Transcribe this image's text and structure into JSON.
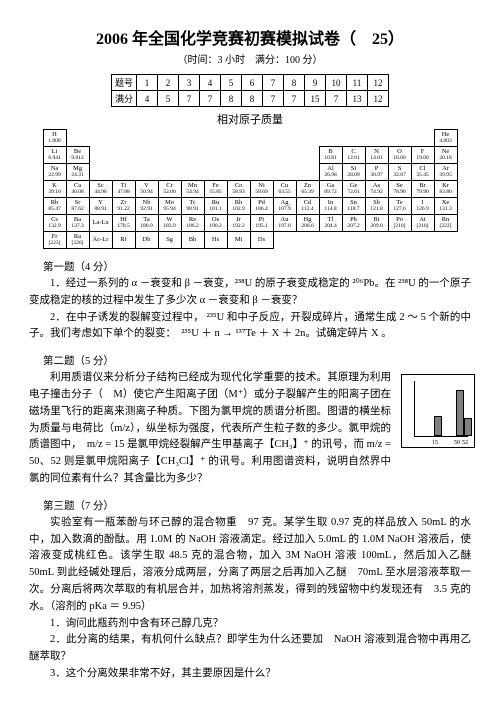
{
  "title": "2006 年全国化学竞赛初赛模拟试卷（　25）",
  "subtitle": "（时间：3 小时　满分：100 分）",
  "scoreTable": {
    "row1": [
      "题号",
      "1",
      "2",
      "3",
      "4",
      "5",
      "6",
      "7",
      "8",
      "9",
      "10",
      "11",
      "12"
    ],
    "row2": [
      "满分",
      "4",
      "5",
      "7",
      "7",
      "8",
      "8",
      "7",
      "7",
      "15",
      "7",
      "13",
      "12"
    ]
  },
  "periodicLabel": "相对原子质量",
  "periodic": {
    "r1": [
      {
        "s": "H",
        "m": "1.008"
      },
      null,
      null,
      null,
      null,
      null,
      null,
      null,
      null,
      null,
      null,
      null,
      null,
      null,
      null,
      null,
      null,
      {
        "s": "He",
        "m": "4.003"
      }
    ],
    "r2": [
      {
        "s": "Li",
        "m": "6.941"
      },
      {
        "s": "Be",
        "m": "9.012"
      },
      null,
      null,
      null,
      null,
      null,
      null,
      null,
      null,
      null,
      null,
      {
        "s": "B",
        "m": "10.81"
      },
      {
        "s": "C",
        "m": "12.01"
      },
      {
        "s": "N",
        "m": "14.01"
      },
      {
        "s": "O",
        "m": "16.00"
      },
      {
        "s": "F",
        "m": "19.00"
      },
      {
        "s": "Ne",
        "m": "20.18"
      }
    ],
    "r3": [
      {
        "s": "Na",
        "m": "22.99"
      },
      {
        "s": "Mg",
        "m": "24.31"
      },
      null,
      null,
      null,
      null,
      null,
      null,
      null,
      null,
      null,
      null,
      {
        "s": "Al",
        "m": "26.98"
      },
      {
        "s": "Si",
        "m": "28.09"
      },
      {
        "s": "P",
        "m": "30.97"
      },
      {
        "s": "S",
        "m": "32.07"
      },
      {
        "s": "Cl",
        "m": "35.45"
      },
      {
        "s": "Ar",
        "m": "39.95"
      }
    ],
    "r4": [
      {
        "s": "K",
        "m": "39.10"
      },
      {
        "s": "Ca",
        "m": "40.08"
      },
      {
        "s": "Sc",
        "m": "44.96"
      },
      {
        "s": "Ti",
        "m": "47.88"
      },
      {
        "s": "V",
        "m": "50.94"
      },
      {
        "s": "Cr",
        "m": "52.00"
      },
      {
        "s": "Mn",
        "m": "54.94"
      },
      {
        "s": "Fe",
        "m": "55.85"
      },
      {
        "s": "Co",
        "m": "58.93"
      },
      {
        "s": "Ni",
        "m": "58.69"
      },
      {
        "s": "Cu",
        "m": "63.55"
      },
      {
        "s": "Zn",
        "m": "65.39"
      },
      {
        "s": "Ga",
        "m": "69.72"
      },
      {
        "s": "Ge",
        "m": "72.61"
      },
      {
        "s": "As",
        "m": "74.92"
      },
      {
        "s": "Se",
        "m": "78.96"
      },
      {
        "s": "Br",
        "m": "79.90"
      },
      {
        "s": "Kr",
        "m": "83.80"
      }
    ],
    "r5": [
      {
        "s": "Rb",
        "m": "85.47"
      },
      {
        "s": "Sr",
        "m": "87.62"
      },
      {
        "s": "Y",
        "m": "88.91"
      },
      {
        "s": "Zr",
        "m": "91.22"
      },
      {
        "s": "Nb",
        "m": "92.91"
      },
      {
        "s": "Mo",
        "m": "95.94"
      },
      {
        "s": "Tc",
        "m": "98.91"
      },
      {
        "s": "Ru",
        "m": "101.1"
      },
      {
        "s": "Rh",
        "m": "102.9"
      },
      {
        "s": "Pd",
        "m": "106.4"
      },
      {
        "s": "Ag",
        "m": "107.9"
      },
      {
        "s": "Cd",
        "m": "112.4"
      },
      {
        "s": "In",
        "m": "114.8"
      },
      {
        "s": "Sn",
        "m": "118.7"
      },
      {
        "s": "Sb",
        "m": "121.8"
      },
      {
        "s": "Te",
        "m": "127.6"
      },
      {
        "s": "I",
        "m": "126.9"
      },
      {
        "s": "Xe",
        "m": "131.3"
      }
    ],
    "r6": [
      {
        "s": "Cs",
        "m": "132.9"
      },
      {
        "s": "Ba",
        "m": "137.3"
      },
      {
        "s": "La-Lu",
        "m": ""
      },
      {
        "s": "Hf",
        "m": "178.5"
      },
      {
        "s": "Ta",
        "m": "180.9"
      },
      {
        "s": "W",
        "m": "183.9"
      },
      {
        "s": "Re",
        "m": "186.2"
      },
      {
        "s": "Os",
        "m": "190.2"
      },
      {
        "s": "Ir",
        "m": "192.2"
      },
      {
        "s": "Pt",
        "m": "195.1"
      },
      {
        "s": "Au",
        "m": "197.0"
      },
      {
        "s": "Hg",
        "m": "200.6"
      },
      {
        "s": "Tl",
        "m": "204.4"
      },
      {
        "s": "Pb",
        "m": "207.2"
      },
      {
        "s": "Bi",
        "m": "209.0"
      },
      {
        "s": "Po",
        "m": "[210]"
      },
      {
        "s": "At",
        "m": "[210]"
      },
      {
        "s": "Rn",
        "m": "[222]"
      }
    ],
    "r7": [
      {
        "s": "Fr",
        "m": "[223]"
      },
      {
        "s": "Ra",
        "m": "[226]"
      },
      {
        "s": "Ac-Lr",
        "m": ""
      },
      {
        "s": "Rf",
        "m": ""
      },
      {
        "s": "Db",
        "m": ""
      },
      {
        "s": "Sg",
        "m": ""
      },
      {
        "s": "Bh",
        "m": ""
      },
      {
        "s": "Hs",
        "m": ""
      },
      {
        "s": "Mt",
        "m": ""
      },
      {
        "s": "Ds",
        "m": ""
      },
      null,
      null,
      null,
      null,
      null,
      null,
      null,
      null
    ]
  },
  "q1": {
    "head": "第一题（4 分）",
    "p1": "1．经过一系列的 α －衰变和 β －衰变，²³⁸U 的原子衰变成稳定的 ²⁰⁶Pb。在 ²³⁸U 的一个原子变成稳定的核的过程中发生了多少次 α －衰变和 β －衰变？",
    "p2": "2．在中子诱发的裂解变过程中， ²³⁵U 和中子反应，开裂成碎片，通常生成 2 ～ 5 个新的中子。我们考虑如下单个的裂变：　²³⁵U ＋ n → ¹³⁷Te ＋ X ＋ 2n。试确定碎片 X 。"
  },
  "q2": {
    "head": "第二题（5 分）",
    "p1": "利用质谱仪来分析分子结构已经成为现代化学重要的技术。其原理为利用电子撞击分子（　M）使它产生阳离子团（M⁺）或分子裂解产生的阳离子团在磁场里飞行的距离来测离子种质。下图为氯甲烷的质谱分析图。图谱的横坐标为质量与电荷比（m/z），纵坐标为强度，代表所产生粒子数的多少。氯甲烷的质谱图中，　m/z = 15 是氯甲烷经裂解产生甲基离子【CH₃】⁺ 的讯号，而 m/z = 50、52 则是氯甲烷阳离子【CH₃Cl】⁺ 的讯号。利用图谱资料，说明自然界中氯的同位素有什么？其含量比为多少？",
    "fig": {
      "bars": [
        {
          "x": 20,
          "h": 18,
          "label": "15"
        },
        {
          "x": 42,
          "h": 44,
          "label": "50"
        },
        {
          "x": 50,
          "h": 16,
          "label": "52"
        }
      ]
    }
  },
  "q3": {
    "head": "第三题（7 分）",
    "p1": "实验室有一瓶苯酚与环己醇的混合物重　97 克。某学生取 0.97 克的样品放入 50mL 的水中，加入数滴的酚酞。用 1.0M 的 NaOH 溶液滴定。经过加入 5.0mL 的 1.0M NaOH 溶液后，使溶液变成桃红色。该学生取 48.5 克的混合物，加入 3M NaOH 溶液 100mL，然后加入乙醚　50mL 到此经碱处理后，溶液分成两层，分离了两层之后再加入乙醚　70mL 至水层溶液萃取一次。分离后将两次萃取的有机层合并，加热将溶剂蒸发，得到的残留物中约发现还有　3.5 克的水。（溶剂的 pKa ＝ 9.95）",
    "i1": "1．询问此瓶药剂中含有环己醇几克？",
    "i2": "2．此分离的结果，有机何什么缺点？即学生为什么还要加　NaOH 溶液到混合物中再用乙醚萃取？",
    "i3": "3．这个分离效果非常不好，其主要原因是什么？"
  }
}
